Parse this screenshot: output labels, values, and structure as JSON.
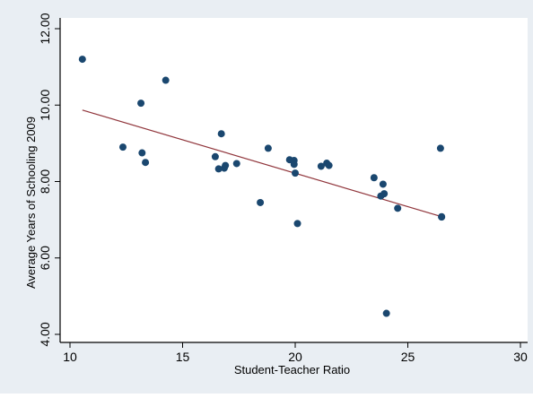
{
  "chart_data": {
    "type": "scatter",
    "title": "",
    "xlabel": "Student-Teacher Ratio",
    "ylabel": "Average Years of Schooling 2009",
    "xlim": [
      10,
      30
    ],
    "ylim": [
      4,
      12
    ],
    "x_ticks": [
      "10",
      "15",
      "20",
      "25",
      "30"
    ],
    "y_ticks": [
      "4.00",
      "6.00",
      "8.00",
      "10.00",
      "12.00"
    ],
    "grid": false,
    "legend": "none",
    "points": [
      {
        "x": 10.55,
        "y": 11.2
      },
      {
        "x": 12.35,
        "y": 8.9
      },
      {
        "x": 13.15,
        "y": 10.05
      },
      {
        "x": 13.2,
        "y": 8.75
      },
      {
        "x": 13.35,
        "y": 8.5
      },
      {
        "x": 14.25,
        "y": 10.65
      },
      {
        "x": 16.45,
        "y": 8.65
      },
      {
        "x": 16.6,
        "y": 8.33
      },
      {
        "x": 16.72,
        "y": 9.25
      },
      {
        "x": 16.85,
        "y": 8.35
      },
      {
        "x": 16.9,
        "y": 8.42
      },
      {
        "x": 17.4,
        "y": 8.47
      },
      {
        "x": 18.45,
        "y": 7.45
      },
      {
        "x": 18.8,
        "y": 8.87
      },
      {
        "x": 19.75,
        "y": 8.57
      },
      {
        "x": 19.95,
        "y": 8.45
      },
      {
        "x": 19.95,
        "y": 8.55
      },
      {
        "x": 20.0,
        "y": 8.22
      },
      {
        "x": 20.1,
        "y": 6.9
      },
      {
        "x": 21.15,
        "y": 8.4
      },
      {
        "x": 21.4,
        "y": 8.48
      },
      {
        "x": 21.5,
        "y": 8.42
      },
      {
        "x": 23.5,
        "y": 8.1
      },
      {
        "x": 23.8,
        "y": 7.62
      },
      {
        "x": 23.9,
        "y": 7.93
      },
      {
        "x": 23.95,
        "y": 7.68
      },
      {
        "x": 24.05,
        "y": 4.55
      },
      {
        "x": 24.55,
        "y": 7.3
      },
      {
        "x": 26.45,
        "y": 8.87
      },
      {
        "x": 26.5,
        "y": 7.08
      },
      {
        "x": 26.5,
        "y": 7.07
      }
    ],
    "fit_line": {
      "x": [
        10.55,
        26.5
      ],
      "y": [
        9.87,
        7.08
      ]
    },
    "colors": {
      "background": "#e9eef3",
      "plot_area": "#ffffff",
      "marker": "#1a476f",
      "fit_line": "#90353b",
      "axis": "#000000"
    }
  }
}
